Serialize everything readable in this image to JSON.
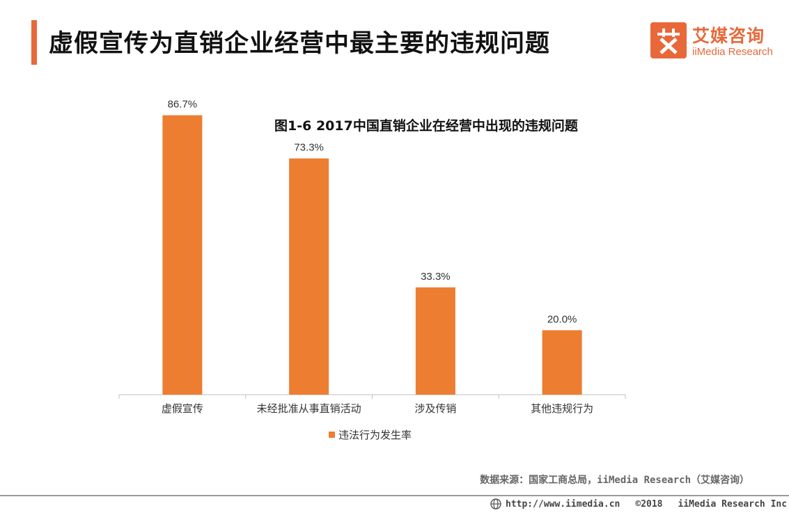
{
  "header": {
    "title": "虚假宣传为直销企业经营中最主要的违规问题"
  },
  "logo": {
    "mark": "艾",
    "name_cn": "艾媒咨询",
    "name_en": "iiMedia Research"
  },
  "colors": {
    "accent": "#e8683a",
    "bar": "#ed7d31"
  },
  "chart_data": {
    "type": "bar",
    "title": "图1-6 2017中国直销企业在经营中出现的违规问题",
    "categories": [
      "虚假宣传",
      "未经批准从事直销活动",
      "涉及传销",
      "其他违规行为"
    ],
    "series": [
      {
        "name": "违法行为发生率",
        "values": [
          86.7,
          73.3,
          33.3,
          20.0
        ],
        "labels": [
          "86.7%",
          "73.3%",
          "33.3%",
          "20.0%"
        ]
      }
    ],
    "xlabel": "",
    "ylabel": "",
    "ylim": [
      0,
      100
    ],
    "grid": false,
    "legend": "bottom"
  },
  "source": "数据来源：国家工商总局，iiMedia Research（艾媒咨询）",
  "footer": {
    "url": "http://www.iimedia.cn",
    "copyright": "©2018",
    "company": "iiMedia Research  Inc"
  }
}
